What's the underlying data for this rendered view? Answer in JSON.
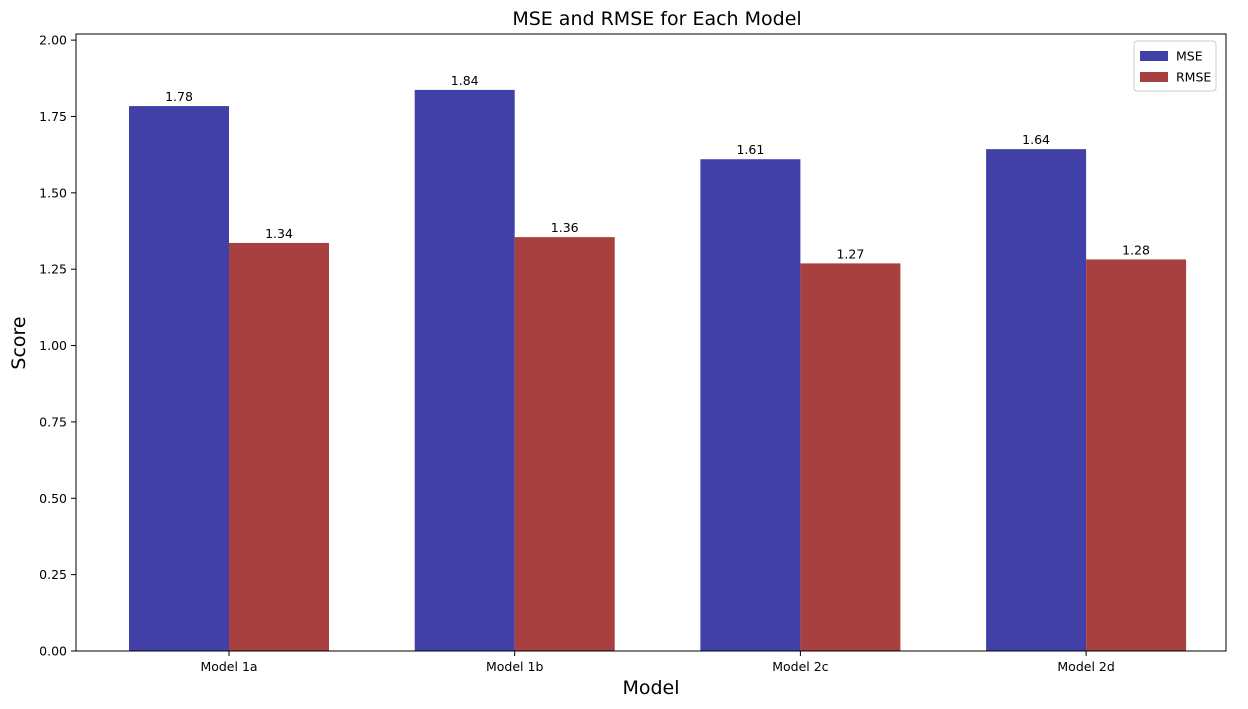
{
  "chart_data": {
    "type": "bar",
    "title": "MSE and RMSE for Each Model",
    "xlabel": "Model",
    "ylabel": "Score",
    "categories": [
      "Model 1a",
      "Model 1b",
      "Model 2c",
      "Model 2d"
    ],
    "series": [
      {
        "name": "MSE",
        "color": "#4040a6",
        "values": [
          1.784,
          1.837,
          1.61,
          1.643
        ],
        "labels": [
          "1.78",
          "1.84",
          "1.61",
          "1.64"
        ]
      },
      {
        "name": "RMSE",
        "color": "#a84040",
        "values": [
          1.336,
          1.355,
          1.269,
          1.282
        ],
        "labels": [
          "1.34",
          "1.36",
          "1.27",
          "1.28"
        ]
      }
    ],
    "ylim": [
      0,
      2.02
    ],
    "yticks": [
      0.0,
      0.25,
      0.5,
      0.75,
      1.0,
      1.25,
      1.5,
      1.75,
      2.0
    ],
    "ytick_labels": [
      "0.00",
      "0.25",
      "0.50",
      "0.75",
      "1.00",
      "1.25",
      "1.50",
      "1.75",
      "2.00"
    ],
    "grid": false,
    "legend": "top-right"
  }
}
